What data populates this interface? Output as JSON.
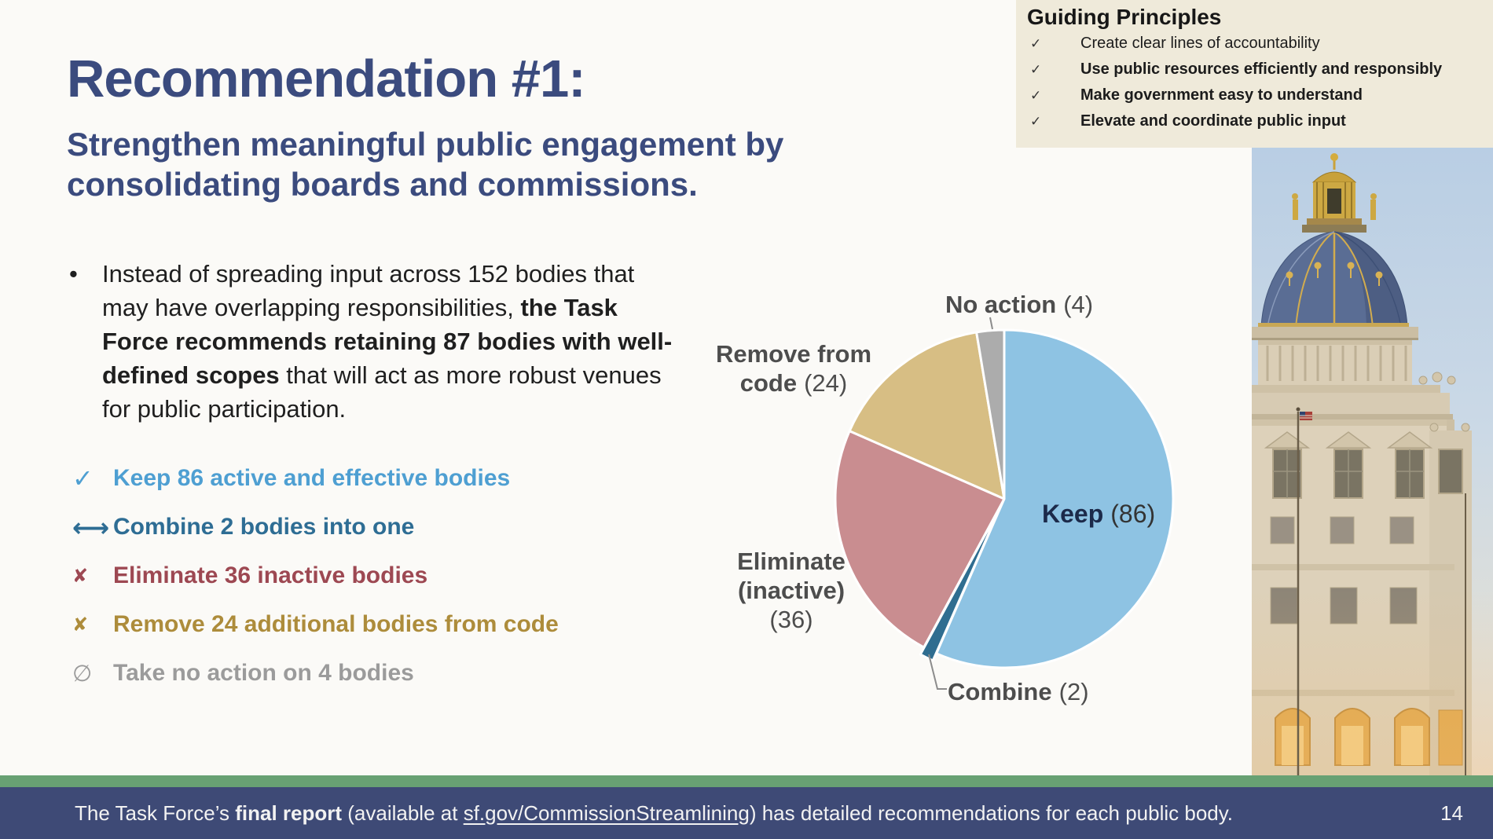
{
  "slide": {
    "title": "Recommendation #1:",
    "subtitle": "Strengthen meaningful public engagement by consolidating boards and commissions.",
    "bullet_char": "•",
    "paragraph": {
      "pre": "Instead of spreading input across 152 bodies that may have overlapping responsibilities, ",
      "bold": "the Task Force recommends retaining 87 bodies with well-defined scopes",
      "post": " that will act as more robust venues for public participation."
    },
    "actions": [
      {
        "icon": "check",
        "icon_char": "✓",
        "label": "Keep 86 active and effective bodies",
        "color": "#4E9FD2"
      },
      {
        "icon": "arrows",
        "icon_char": "⟷",
        "label": "Combine 2 bodies into one",
        "color": "#2E6D94"
      },
      {
        "icon": "x",
        "icon_char": "✘",
        "label": "Eliminate 36 inactive bodies",
        "color": "#9D4852"
      },
      {
        "icon": "x",
        "icon_char": "✘",
        "label": "Remove 24 additional bodies from code",
        "color": "#AD8C3B"
      },
      {
        "icon": "slash",
        "icon_char": "∅",
        "label": "Take no action on 4 bodies",
        "color": "#9B9B9B"
      }
    ]
  },
  "guiding_principles": {
    "title": "Guiding Principles",
    "check_char": "✓",
    "background": "#EFEADA",
    "items": [
      {
        "label": "Create clear lines of accountability",
        "bold": false
      },
      {
        "label": "Use public resources efficiently and responsibly",
        "bold": true
      },
      {
        "label": "Make government easy to understand",
        "bold": true
      },
      {
        "label": "Elevate and coordinate public input",
        "bold": true
      }
    ]
  },
  "chart_data": {
    "type": "pie",
    "total": 152,
    "start_angle": "12-oclock",
    "direction": "clockwise",
    "legend_position": "outside-labels",
    "slices": [
      {
        "name": "Keep",
        "value": 86,
        "color": "#8EC3E3",
        "count_label": "(86)"
      },
      {
        "name": "Combine",
        "value": 2,
        "color": "#2F6D90",
        "count_label": "(2)",
        "exploded": true
      },
      {
        "name": "Eliminate (inactive)",
        "value": 36,
        "color": "#C98D90",
        "count_label": "(36)",
        "label_line1": "Eliminate",
        "label_line2": "(inactive)"
      },
      {
        "name": "Remove from code",
        "value": 24,
        "color": "#D7BE84",
        "count_label": "(24)",
        "label_line1": "Remove from",
        "label_line2": "code"
      },
      {
        "name": "No action",
        "value": 4,
        "color": "#ACACAC",
        "count_label": "(4)"
      }
    ]
  },
  "footer": {
    "text_pre": "The Task Force’s ",
    "text_bold": "final report",
    "text_mid": " (available at ",
    "link": "sf.gov/CommissionStreamlining",
    "text_post": ") has detailed recommendations for each public body.",
    "page_number": "14",
    "bar_color": "#3E4A76",
    "strip_color": "#68A173"
  }
}
